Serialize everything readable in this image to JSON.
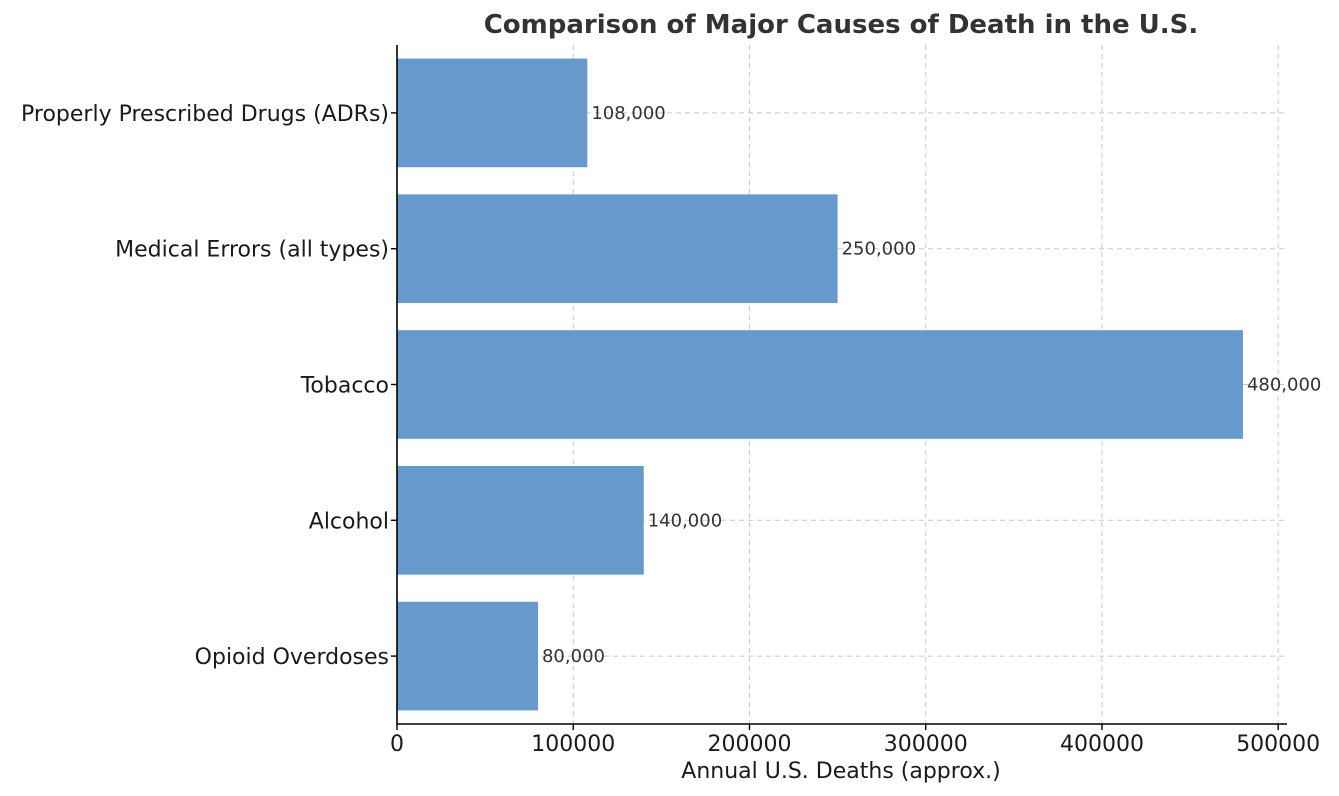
{
  "chart_data": {
    "type": "bar",
    "orientation": "horizontal",
    "title": "Comparison of Major Causes of Death in the U.S.",
    "xlabel": "Annual U.S. Deaths (approx.)",
    "ylabel": "",
    "categories": [
      "Properly Prescribed Drugs (ADRs)",
      "Medical Errors (all types)",
      "Tobacco",
      "Alcohol",
      "Opioid Overdoses"
    ],
    "values": [
      108000,
      250000,
      480000,
      140000,
      80000
    ],
    "data_labels": [
      "108,000",
      "250,000",
      "480,000",
      "140,000",
      "80,000"
    ],
    "xlim": [
      0,
      505000
    ],
    "x_ticks": [
      0,
      100000,
      200000,
      300000,
      400000,
      500000
    ],
    "x_tick_labels": [
      "0",
      "100000",
      "200000",
      "300000",
      "400000",
      "500000"
    ],
    "grid": true,
    "legend": "none",
    "bar_color": "#6699cc"
  }
}
